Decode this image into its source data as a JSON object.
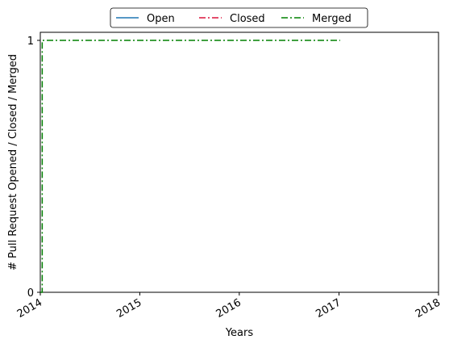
{
  "chart_data": {
    "type": "line",
    "title": "",
    "xlabel": "Years",
    "ylabel": "# Pull Request Opened / Closed / Merged",
    "x_ticks": [
      "2014",
      "2015",
      "2016",
      "2017",
      "2018"
    ],
    "y_ticks": [
      "0",
      "1"
    ],
    "xlim": [
      "2014-01-01",
      "2018-01-01"
    ],
    "ylim": [
      0,
      1
    ],
    "grid": false,
    "legend_position": "top-center",
    "series": [
      {
        "name": "Open",
        "color": "#1f77b4",
        "line_style": "solid",
        "points": []
      },
      {
        "name": "Closed",
        "color": "#dc143c",
        "line_style": "dashdot",
        "points": []
      },
      {
        "name": "Merged",
        "color": "#008000",
        "line_style": "dashdot",
        "points": [
          {
            "x": "2014-01-01",
            "y": 0
          },
          {
            "x": "2014-01-08",
            "y": 0
          },
          {
            "x": "2014-01-08",
            "y": 1
          },
          {
            "x": "2017-01-05",
            "y": 1
          }
        ]
      }
    ]
  }
}
